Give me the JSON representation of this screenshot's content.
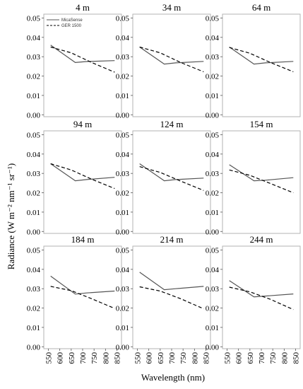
{
  "chart_data": {
    "type": "line",
    "ylabel": "Radiance (W m⁻² nm⁻¹ sr⁻¹)",
    "xlabel": "Wavelength (nm)",
    "xticks": [
      550,
      600,
      650,
      700,
      750,
      800,
      850
    ],
    "yticks": [
      "0.00",
      "0.01",
      "0.02",
      "0.03",
      "0.04",
      "0.05"
    ],
    "xlim": [
      530,
      870
    ],
    "ylim": [
      -0.001,
      0.052
    ],
    "legend": [
      "MicaSense",
      "GER 1500"
    ],
    "legend_position": "top-left of first panel",
    "series_colors": {
      "MicaSense": "#555555",
      "GER 1500": "#000000"
    },
    "panels": [
      {
        "title": "4 m",
        "micasense": {
          "x": [
            560,
            668,
            717,
            840
          ],
          "y": [
            0.036,
            0.027,
            0.0275,
            0.028
          ]
        },
        "ger": {
          "x": [
            560,
            650,
            740,
            840
          ],
          "y": [
            0.035,
            0.032,
            0.027,
            0.022
          ]
        }
      },
      {
        "title": "34 m",
        "micasense": {
          "x": [
            560,
            668,
            717,
            840
          ],
          "y": [
            0.035,
            0.0262,
            0.0268,
            0.0276
          ]
        },
        "ger": {
          "x": [
            560,
            650,
            740,
            840
          ],
          "y": [
            0.035,
            0.032,
            0.027,
            0.0222
          ]
        }
      },
      {
        "title": "64 m",
        "micasense": {
          "x": [
            560,
            668,
            717,
            840
          ],
          "y": [
            0.035,
            0.0262,
            0.0268,
            0.0276
          ]
        },
        "ger": {
          "x": [
            560,
            650,
            740,
            840
          ],
          "y": [
            0.0348,
            0.0318,
            0.027,
            0.0222
          ]
        }
      },
      {
        "title": "94 m",
        "micasense": {
          "x": [
            560,
            668,
            717,
            840
          ],
          "y": [
            0.035,
            0.0262,
            0.0268,
            0.028
          ]
        },
        "ger": {
          "x": [
            560,
            650,
            740,
            840
          ],
          "y": [
            0.035,
            0.0318,
            0.027,
            0.0222
          ]
        }
      },
      {
        "title": "124 m",
        "micasense": {
          "x": [
            560,
            668,
            717,
            840
          ],
          "y": [
            0.035,
            0.0262,
            0.0268,
            0.0276
          ]
        },
        "ger": {
          "x": [
            560,
            650,
            740,
            840
          ],
          "y": [
            0.0335,
            0.0305,
            0.026,
            0.0212
          ]
        }
      },
      {
        "title": "154 m",
        "micasense": {
          "x": [
            560,
            668,
            717,
            840
          ],
          "y": [
            0.0345,
            0.0262,
            0.0265,
            0.0278
          ]
        },
        "ger": {
          "x": [
            560,
            650,
            740,
            840
          ],
          "y": [
            0.0318,
            0.029,
            0.0248,
            0.02
          ]
        }
      },
      {
        "title": "184 m",
        "micasense": {
          "x": [
            560,
            668,
            717,
            840
          ],
          "y": [
            0.0365,
            0.0272,
            0.0278,
            0.0288
          ]
        },
        "ger": {
          "x": [
            560,
            650,
            740,
            840
          ],
          "y": [
            0.0312,
            0.029,
            0.0248,
            0.0198
          ]
        }
      },
      {
        "title": "214 m",
        "micasense": {
          "x": [
            560,
            668,
            717,
            840
          ],
          "y": [
            0.0385,
            0.0295,
            0.03,
            0.0312
          ]
        },
        "ger": {
          "x": [
            560,
            650,
            740,
            840
          ],
          "y": [
            0.031,
            0.0288,
            0.0248,
            0.0196
          ]
        }
      },
      {
        "title": "244 m",
        "micasense": {
          "x": [
            560,
            668,
            717,
            840
          ],
          "y": [
            0.0342,
            0.0258,
            0.0262,
            0.0273
          ]
        },
        "ger": {
          "x": [
            560,
            650,
            740,
            840
          ],
          "y": [
            0.0308,
            0.0284,
            0.0245,
            0.0192
          ]
        }
      }
    ]
  }
}
